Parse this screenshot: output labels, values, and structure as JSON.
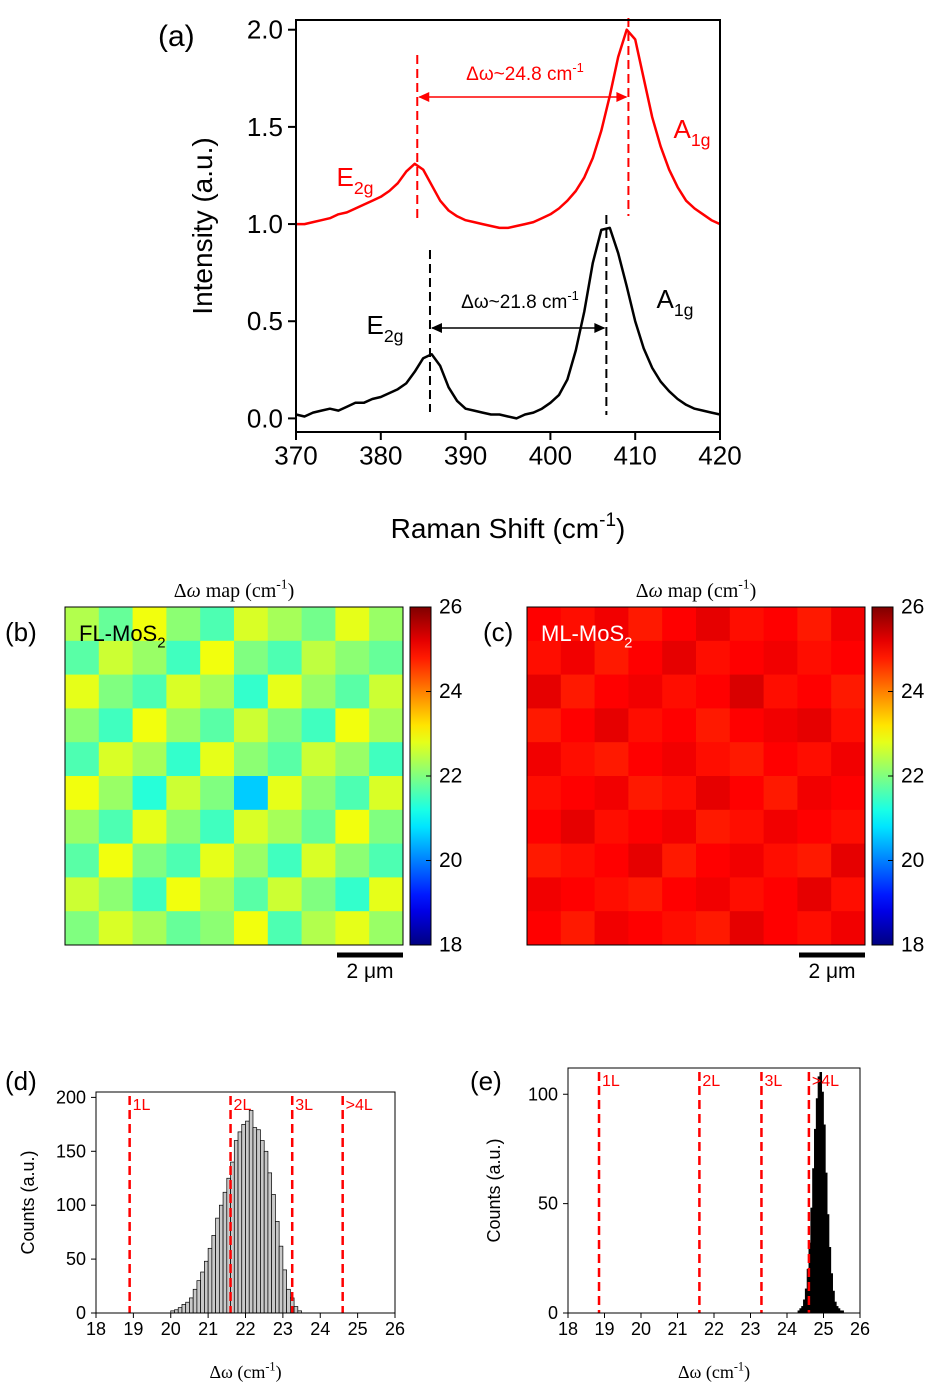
{
  "chart_data": [
    {
      "type": "line",
      "panel_label": "(a)",
      "xlabel": [
        {
          "t": "Raman Shift (cm"
        },
        {
          "sup": "-1"
        },
        {
          "t": ")"
        }
      ],
      "ylabel": "Intensity (a.u.)",
      "xlim": [
        370,
        420
      ],
      "ylim": [
        -0.07,
        2.05
      ],
      "xticks": [
        370,
        380,
        390,
        400,
        410,
        420
      ],
      "yticks": [
        {
          "value": 0,
          "label": "0.0"
        },
        {
          "value": 0.5,
          "label": "0.5"
        },
        {
          "value": 1,
          "label": "1.0"
        },
        {
          "value": 1.5,
          "label": "1.5"
        },
        {
          "value": 2,
          "label": "2.0"
        }
      ],
      "x": [
        370,
        371,
        372,
        373,
        374,
        375,
        376,
        377,
        378,
        379,
        380,
        381,
        382,
        383,
        384,
        385,
        386,
        387,
        388,
        389,
        390,
        391,
        392,
        393,
        394,
        395,
        396,
        397,
        398,
        399,
        400,
        401,
        402,
        403,
        404,
        405,
        406,
        407,
        408,
        409,
        410,
        411,
        412,
        413,
        414,
        415,
        416,
        417,
        418,
        419,
        420
      ],
      "series": [
        {
          "color": "#ff0000",
          "values": [
            1.0,
            1.0,
            1.01,
            1.02,
            1.03,
            1.05,
            1.06,
            1.08,
            1.1,
            1.12,
            1.14,
            1.17,
            1.21,
            1.27,
            1.31,
            1.28,
            1.2,
            1.12,
            1.07,
            1.04,
            1.02,
            1.01,
            1.0,
            0.99,
            0.98,
            0.98,
            0.99,
            1.0,
            1.01,
            1.03,
            1.05,
            1.08,
            1.12,
            1.17,
            1.24,
            1.34,
            1.48,
            1.66,
            1.86,
            2.0,
            1.95,
            1.75,
            1.55,
            1.4,
            1.28,
            1.19,
            1.12,
            1.08,
            1.05,
            1.02,
            1.0
          ]
        },
        {
          "color": "#000000",
          "values": [
            0.02,
            0.01,
            0.03,
            0.04,
            0.05,
            0.04,
            0.06,
            0.08,
            0.08,
            0.1,
            0.11,
            0.13,
            0.15,
            0.18,
            0.24,
            0.31,
            0.33,
            0.27,
            0.16,
            0.09,
            0.05,
            0.04,
            0.03,
            0.02,
            0.02,
            0.01,
            0.0,
            0.02,
            0.03,
            0.05,
            0.08,
            0.12,
            0.2,
            0.35,
            0.55,
            0.8,
            0.97,
            0.98,
            0.85,
            0.68,
            0.5,
            0.36,
            0.26,
            0.19,
            0.14,
            0.1,
            0.07,
            0.05,
            0.04,
            0.03,
            0.02
          ]
        }
      ],
      "peak_lines": [
        {
          "x": 384.3,
          "color": "#ff0000"
        },
        {
          "x": 409.2,
          "color": "#ff0000"
        },
        {
          "x": 385.8,
          "color": "#000000"
        },
        {
          "x": 406.6,
          "color": "#000000"
        }
      ],
      "annotations": [
        {
          "text": [
            {
              "t": "E"
            },
            {
              "sub": "2g"
            }
          ],
          "color": "#ff0000"
        },
        {
          "text": [
            {
              "t": "A"
            },
            {
              "sub": "1g"
            }
          ],
          "color": "#ff0000"
        },
        {
          "text": [
            {
              "t": "Δω~24.8 cm"
            },
            {
              "sup": "-1"
            }
          ],
          "color": "#ff0000"
        },
        {
          "text": [
            {
              "t": "E"
            },
            {
              "sub": "2g"
            }
          ],
          "color": "#000000"
        },
        {
          "text": [
            {
              "t": "A"
            },
            {
              "sub": "1g"
            }
          ],
          "color": "#000000"
        },
        {
          "text": [
            {
              "t": "Δω~21.8 cm"
            },
            {
              "sup": "-1"
            }
          ],
          "color": "#000000"
        }
      ]
    },
    {
      "type": "heatmap",
      "panel_label": "(b)",
      "title": [
        {
          "t": "Δ"
        },
        {
          "i": "ω"
        },
        {
          "t": " map (cm"
        },
        {
          "sup": "-1"
        },
        {
          "t": ")"
        }
      ],
      "label": [
        {
          "t": "FL-MoS"
        },
        {
          "sub": "2"
        }
      ],
      "label_color": "#000000",
      "colormap": "jet",
      "clim": [
        18,
        26
      ],
      "cticks": [
        18,
        20,
        22,
        24,
        26
      ],
      "scalebar": "2 μm",
      "z": [
        [
          22.4,
          21.8,
          22.9,
          22.1,
          21.6,
          22.7,
          22.3,
          21.9,
          22.8,
          22.2
        ],
        [
          21.7,
          22.6,
          22.2,
          21.5,
          22.9,
          22.0,
          21.6,
          22.5,
          22.1,
          21.8
        ],
        [
          22.8,
          22.0,
          21.6,
          22.7,
          22.3,
          21.4,
          22.8,
          22.2,
          21.7,
          22.6
        ],
        [
          22.1,
          21.5,
          22.9,
          22.2,
          21.7,
          22.6,
          22.0,
          21.5,
          22.9,
          22.3
        ],
        [
          21.6,
          22.7,
          22.3,
          21.4,
          22.8,
          22.1,
          21.7,
          22.6,
          22.2,
          21.5
        ],
        [
          22.9,
          22.2,
          21.3,
          22.6,
          22.0,
          20.6,
          22.8,
          22.1,
          21.6,
          22.7
        ],
        [
          22.2,
          21.6,
          22.8,
          22.1,
          21.5,
          22.7,
          22.3,
          21.8,
          22.9,
          22.0
        ],
        [
          21.7,
          22.9,
          22.0,
          21.6,
          22.8,
          22.2,
          21.5,
          22.7,
          22.1,
          21.6
        ],
        [
          22.6,
          22.1,
          21.5,
          22.9,
          22.3,
          21.7,
          22.6,
          22.0,
          21.4,
          22.8
        ],
        [
          22.0,
          22.7,
          22.3,
          21.8,
          22.1,
          22.9,
          21.6,
          22.4,
          22.8,
          22.2
        ]
      ]
    },
    {
      "type": "heatmap",
      "panel_label": "(c)",
      "title": [
        {
          "t": "Δ"
        },
        {
          "i": "ω"
        },
        {
          "t": " map (cm"
        },
        {
          "sup": "-1"
        },
        {
          "t": ")"
        }
      ],
      "label": [
        {
          "t": "ML-MoS"
        },
        {
          "sub": "2"
        }
      ],
      "label_color": "#ffffff",
      "colormap": "jet",
      "clim": [
        18,
        26
      ],
      "cticks": [
        18,
        20,
        22,
        24,
        26
      ],
      "scalebar": "2 μm",
      "z": [
        [
          25.0,
          24.9,
          25.1,
          24.8,
          25.0,
          25.2,
          24.9,
          25.0,
          24.8,
          25.1
        ],
        [
          24.9,
          25.1,
          24.8,
          25.0,
          25.2,
          24.9,
          25.0,
          25.1,
          24.9,
          25.0
        ],
        [
          25.2,
          24.8,
          25.0,
          25.1,
          24.9,
          25.0,
          25.3,
          24.9,
          25.0,
          24.8
        ],
        [
          24.8,
          25.0,
          25.2,
          24.9,
          25.0,
          24.8,
          25.0,
          25.1,
          25.2,
          24.9
        ],
        [
          25.1,
          24.9,
          24.8,
          25.0,
          25.1,
          24.9,
          24.8,
          25.0,
          24.9,
          25.1
        ],
        [
          24.9,
          25.0,
          25.1,
          24.8,
          24.9,
          25.2,
          25.0,
          24.8,
          25.1,
          25.0
        ],
        [
          25.0,
          25.2,
          24.9,
          25.0,
          25.1,
          24.8,
          24.9,
          25.1,
          25.0,
          24.9
        ],
        [
          24.8,
          24.9,
          25.0,
          25.2,
          24.8,
          25.0,
          25.1,
          24.9,
          24.8,
          25.2
        ],
        [
          25.1,
          25.0,
          24.9,
          24.8,
          25.0,
          25.1,
          24.9,
          25.0,
          25.2,
          24.9
        ],
        [
          25.0,
          24.8,
          25.1,
          25.0,
          24.9,
          24.8,
          25.2,
          25.0,
          24.9,
          25.1
        ]
      ]
    },
    {
      "type": "histogram",
      "panel_label": "(d)",
      "xlabel": [
        {
          "t": "Δω (cm"
        },
        {
          "sup": "-1"
        },
        {
          "t": ")"
        }
      ],
      "ylabel": "Counts (a.u.)",
      "xlim": [
        18,
        26
      ],
      "ylim": [
        0,
        205
      ],
      "xticks": [
        18,
        19,
        20,
        21,
        22,
        23,
        24,
        25,
        26
      ],
      "yticks": [
        0,
        50,
        100,
        150,
        200
      ],
      "bins": [
        20.0,
        20.1,
        20.2,
        20.3,
        20.4,
        20.5,
        20.6,
        20.7,
        20.8,
        20.9,
        21.0,
        21.1,
        21.2,
        21.3,
        21.4,
        21.5,
        21.6,
        21.7,
        21.8,
        21.9,
        22.0,
        22.1,
        22.2,
        22.3,
        22.4,
        22.5,
        22.6,
        22.7,
        22.8,
        22.9,
        23.0,
        23.1,
        23.2,
        23.3,
        23.4,
        23.5
      ],
      "counts": [
        2,
        3,
        5,
        8,
        10,
        14,
        22,
        30,
        38,
        48,
        60,
        72,
        88,
        100,
        112,
        125,
        140,
        160,
        168,
        175,
        178,
        188,
        172,
        170,
        160,
        150,
        130,
        110,
        85,
        62,
        40,
        22,
        14,
        6,
        2
      ],
      "color": "#c8c8c8",
      "edgecolor": "#000000",
      "layer_color": "#ff0000",
      "layers": [
        {
          "x": 18.9,
          "label": "1L"
        },
        {
          "x": 21.6,
          "label": "2L"
        },
        {
          "x": 23.25,
          "label": "3L"
        },
        {
          "x": 24.6,
          "label": ">4L"
        }
      ]
    },
    {
      "type": "histogram",
      "panel_label": "(e)",
      "xlabel": [
        {
          "t": "Δω (cm"
        },
        {
          "sup": "-1"
        },
        {
          "t": ")"
        }
      ],
      "ylabel": "Counts (a.u.)",
      "xlim": [
        18,
        26
      ],
      "ylim": [
        0,
        112
      ],
      "xticks": [
        18,
        19,
        20,
        21,
        22,
        23,
        24,
        25,
        26
      ],
      "yticks": [
        0,
        50,
        100
      ],
      "bins": [
        24.3,
        24.35,
        24.4,
        24.45,
        24.5,
        24.55,
        24.6,
        24.65,
        24.7,
        24.75,
        24.8,
        24.85,
        24.9,
        24.95,
        25.0,
        25.05,
        25.1,
        25.15,
        25.2,
        25.25,
        25.3,
        25.35,
        25.4,
        25.45,
        25.5,
        25.55
      ],
      "counts": [
        1,
        2,
        3,
        6,
        11,
        20,
        32,
        48,
        66,
        84,
        98,
        108,
        110,
        101,
        86,
        64,
        45,
        30,
        18,
        10,
        5,
        3,
        2,
        1,
        1
      ],
      "color": "#000000",
      "edgecolor": "#000000",
      "layer_color": "#ff0000",
      "layers": [
        {
          "x": 18.85,
          "label": "1L"
        },
        {
          "x": 21.6,
          "label": "2L"
        },
        {
          "x": 23.3,
          "label": "3L"
        },
        {
          "x": 24.6,
          "label": ">4L"
        }
      ]
    }
  ]
}
